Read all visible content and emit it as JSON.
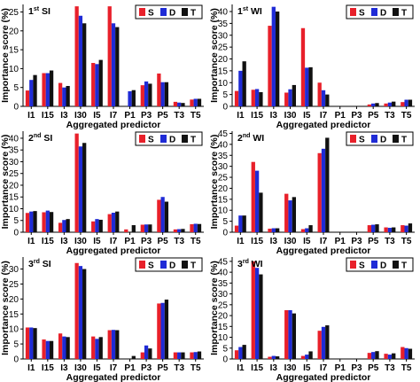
{
  "colors": {
    "S": "#e8202a",
    "D": "#1f2bd6",
    "T": "#111111"
  },
  "y_label": "Importance score (%)",
  "chart_data": [
    {
      "type": "bar",
      "title_main": "1",
      "title_sup": "st",
      "title_tail": " SI",
      "xlabel": "Aggregated predictor",
      "ylabel": "Importance score (%)",
      "categories": [
        "I1",
        "I15",
        "I3",
        "I30",
        "I5",
        "I7",
        "P1",
        "P3",
        "P5",
        "T3",
        "T5"
      ],
      "xtick_labels": [
        "I1",
        "I15",
        "I3",
        "I30",
        "I5",
        "I7",
        "P1",
        "P3",
        "P5",
        "T3",
        "T5"
      ],
      "ylim": [
        0,
        27
      ],
      "yticks": [
        0,
        5,
        10,
        15,
        20,
        25
      ],
      "legend_position": "top-right",
      "series": [
        {
          "name": "S",
          "values": [
            4.2,
            8.8,
            6.2,
            26.5,
            11.5,
            26.5,
            0,
            5.6,
            8.7,
            1.2,
            1.8
          ]
        },
        {
          "name": "D",
          "values": [
            7.0,
            8.8,
            5.0,
            24.0,
            11.2,
            22.0,
            4.0,
            6.6,
            6.4,
            1.0,
            2.0
          ]
        },
        {
          "name": "T",
          "values": [
            8.3,
            9.5,
            5.4,
            22.0,
            12.3,
            21.0,
            4.3,
            6.0,
            6.4,
            0.9,
            2.0
          ]
        }
      ]
    },
    {
      "type": "bar",
      "title_main": "1",
      "title_sup": "st",
      "title_tail": " WI",
      "xlabel": "Aggregated predictor",
      "ylabel": "",
      "categories": [
        "I1",
        "I15",
        "I3",
        "I30",
        "I5",
        "I7",
        "P1",
        "P3",
        "P5",
        "T3",
        "T5"
      ],
      "xtick_labels": [
        "I1",
        "I15",
        "I3",
        "I30",
        "I5",
        "I7",
        "P1",
        "P3",
        "P5",
        "T3",
        "T5"
      ],
      "ylim": [
        0,
        43
      ],
      "yticks": [
        0,
        5,
        10,
        15,
        20,
        25,
        30,
        35,
        40
      ],
      "legend_position": "top-right",
      "series": [
        {
          "name": "S",
          "values": [
            6.5,
            7.0,
            34.0,
            5.8,
            33.0,
            10.0,
            0,
            0,
            0.8,
            1.2,
            1.8
          ]
        },
        {
          "name": "D",
          "values": [
            15.0,
            7.3,
            42.0,
            7.2,
            16.3,
            6.8,
            0,
            0,
            1.2,
            1.6,
            2.8
          ]
        },
        {
          "name": "T",
          "values": [
            19.0,
            6.0,
            40.0,
            9.0,
            16.5,
            5.0,
            0,
            0,
            1.4,
            2.0,
            2.8
          ]
        }
      ]
    },
    {
      "type": "bar",
      "title_main": "2",
      "title_sup": "nd",
      "title_tail": " SI",
      "xlabel": "Aggregated predictor",
      "ylabel": "Importance score (%)",
      "categories": [
        "I1",
        "I15",
        "I3",
        "I30",
        "I5",
        "I7",
        "P1",
        "P3",
        "P5",
        "T3",
        "T5"
      ],
      "xtick_labels": [
        "I1",
        "I15",
        "I3",
        "I30",
        "I5",
        "I7",
        "P1",
        "P3",
        "P5",
        "T3",
        "T5"
      ],
      "ylim": [
        0,
        43
      ],
      "yticks": [
        0,
        5,
        10,
        15,
        20,
        25,
        30,
        35,
        40
      ],
      "legend_position": "top-right",
      "series": [
        {
          "name": "S",
          "values": [
            8.2,
            8.5,
            4.0,
            42.0,
            4.6,
            7.7,
            1.2,
            3.2,
            13.8,
            1.2,
            3.4
          ]
        },
        {
          "name": "D",
          "values": [
            8.8,
            9.2,
            5.2,
            36.5,
            5.6,
            8.3,
            0,
            3.3,
            15.0,
            1.3,
            3.6
          ]
        },
        {
          "name": "T",
          "values": [
            9.0,
            8.6,
            5.6,
            38.0,
            5.3,
            8.8,
            3.0,
            3.3,
            13.0,
            1.4,
            3.5
          ]
        }
      ]
    },
    {
      "type": "bar",
      "title_main": "2",
      "title_sup": "nd",
      "title_tail": " WI",
      "xlabel": "Aggregated predictor",
      "ylabel": "",
      "categories": [
        "I1",
        "I15",
        "I3",
        "I30",
        "I5",
        "I7",
        "P1",
        "P3",
        "P5",
        "T3",
        "T5"
      ],
      "xtick_labels": [
        "I1",
        "I15",
        "I3",
        "I30",
        "I5",
        "I7",
        "P1",
        "P3",
        "P5",
        "T3",
        "T5"
      ],
      "ylim": [
        0,
        46
      ],
      "yticks": [
        0,
        5,
        10,
        15,
        20,
        25,
        30,
        35,
        40,
        45
      ],
      "legend_position": "top-right",
      "series": [
        {
          "name": "S",
          "values": [
            3.0,
            32.0,
            1.6,
            17.5,
            1.4,
            36.0,
            0,
            0,
            3.2,
            2.2,
            3.2
          ]
        },
        {
          "name": "D",
          "values": [
            7.6,
            28.0,
            1.8,
            14.5,
            1.8,
            38.0,
            0,
            0,
            3.4,
            2.0,
            3.0
          ]
        },
        {
          "name": "T",
          "values": [
            7.6,
            18.0,
            1.8,
            16.0,
            3.2,
            43.0,
            0,
            0,
            3.6,
            2.2,
            4.0
          ]
        }
      ]
    },
    {
      "type": "bar",
      "title_main": "3",
      "title_sup": "rd",
      "title_tail": " SI",
      "xlabel": "Aggregated predictor",
      "ylabel": "Importance score (%)",
      "categories": [
        "I1",
        "I15",
        "I3",
        "I30",
        "I5",
        "I7",
        "P1",
        "P3",
        "P5",
        "T3",
        "T5"
      ],
      "xtick_labels": [
        "I1",
        "I15",
        "I3",
        "I30",
        "I5",
        "I7",
        "P1",
        "P3",
        "P5",
        "T3",
        "T5"
      ],
      "ylim": [
        0,
        34
      ],
      "yticks": [
        0,
        5,
        10,
        15,
        20,
        25,
        30
      ],
      "legend_position": "top-right",
      "series": [
        {
          "name": "S",
          "values": [
            10.5,
            6.5,
            8.5,
            32.0,
            7.5,
            9.6,
            0,
            2.2,
            18.5,
            2.2,
            2.2
          ]
        },
        {
          "name": "D",
          "values": [
            10.5,
            6.0,
            7.5,
            31.0,
            6.7,
            9.7,
            0,
            4.5,
            18.7,
            2.2,
            2.3
          ]
        },
        {
          "name": "T",
          "values": [
            10.3,
            6.0,
            7.3,
            30.0,
            7.3,
            9.6,
            1.0,
            3.5,
            19.8,
            2.2,
            2.5
          ]
        }
      ]
    },
    {
      "type": "bar",
      "title_main": "3",
      "title_sup": "rd",
      "title_tail": " WI",
      "xlabel": "Aggregated predictor",
      "ylabel": "",
      "categories": [
        "I1",
        "I15",
        "I3",
        "I30",
        "I5",
        "I7",
        "P1",
        "P3",
        "P5",
        "T3",
        "T5"
      ],
      "xtick_labels": [
        "I1",
        "I15",
        "I3",
        "I30",
        "I5",
        "I7",
        "P1",
        "P3",
        "P5",
        "T3",
        "T5"
      ],
      "ylim": [
        0,
        47
      ],
      "yticks": [
        0,
        5,
        10,
        15,
        20,
        25,
        30,
        35,
        40,
        45
      ],
      "legend_position": "top-right",
      "series": [
        {
          "name": "S",
          "values": [
            4.0,
            45.0,
            1.0,
            22.5,
            1.4,
            13.0,
            0,
            0,
            2.8,
            2.4,
            5.5
          ]
        },
        {
          "name": "D",
          "values": [
            5.5,
            42.0,
            1.4,
            22.5,
            2.0,
            14.8,
            0,
            0,
            3.2,
            2.0,
            5.0
          ]
        },
        {
          "name": "T",
          "values": [
            6.5,
            39.0,
            1.2,
            21.0,
            3.5,
            15.5,
            0,
            0,
            3.6,
            2.6,
            4.7
          ]
        }
      ]
    }
  ]
}
